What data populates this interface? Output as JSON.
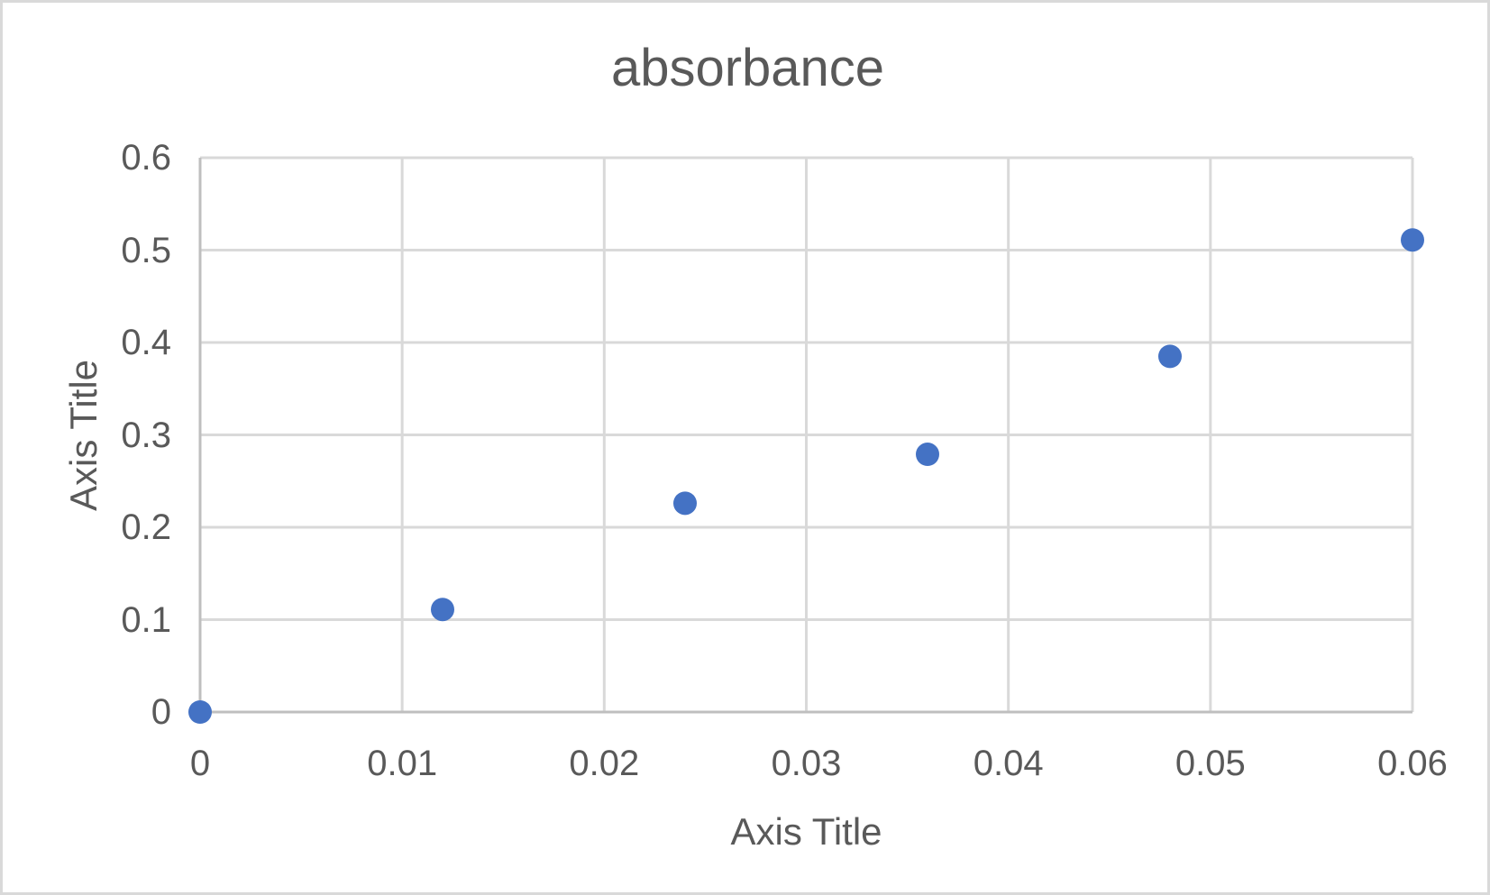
{
  "frame": {
    "background_color": "#FFFFFF",
    "border_color": "#D9D9D9"
  },
  "chart_data": {
    "type": "scatter",
    "title": "absorbance",
    "xlabel": "Axis Title",
    "ylabel": "Axis Title",
    "x": [
      0,
      0.012,
      0.024,
      0.036,
      0.048,
      0.06
    ],
    "y": [
      0,
      0.111,
      0.226,
      0.279,
      0.385,
      0.511
    ],
    "xlim": [
      0,
      0.06
    ],
    "ylim": [
      0,
      0.6
    ],
    "xticks": [
      "0",
      "0.01",
      "0.02",
      "0.03",
      "0.04",
      "0.05",
      "0.06"
    ],
    "yticks": [
      "0",
      "0.1",
      "0.2",
      "0.3",
      "0.4",
      "0.5",
      "0.6"
    ],
    "grid": true,
    "legend_position": "none",
    "marker_color": "#4472C4",
    "grid_color": "#D9D9D9",
    "axis_line_color": "#BFBFBF",
    "text_color": "#595959"
  }
}
